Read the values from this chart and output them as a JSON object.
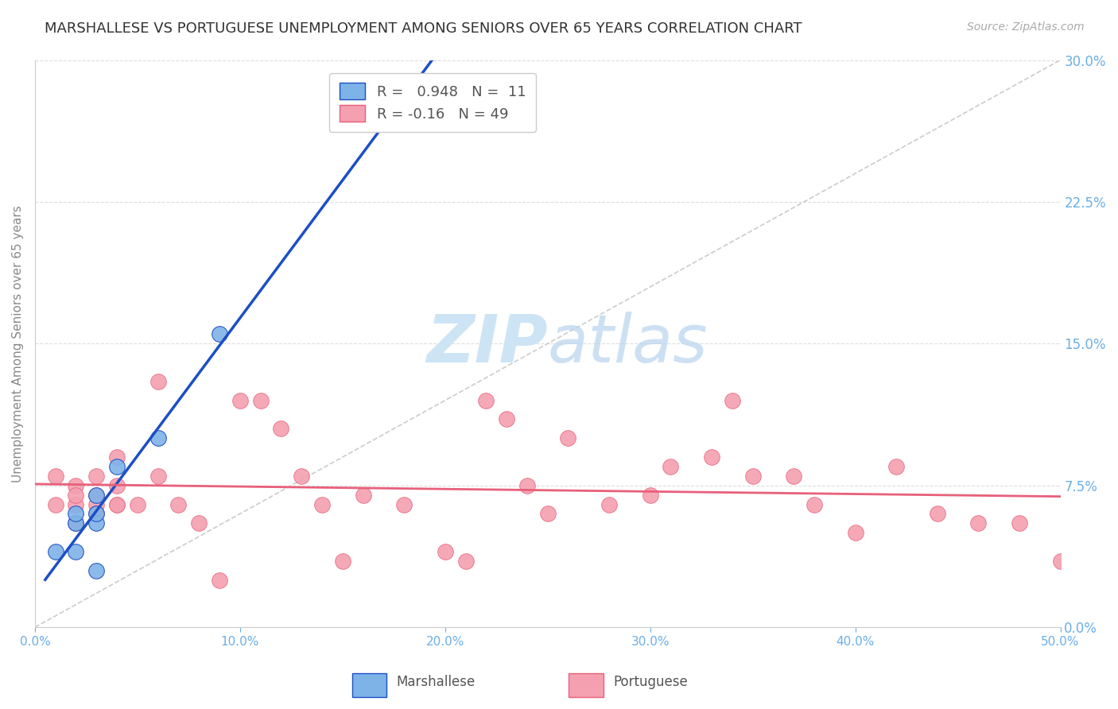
{
  "title": "MARSHALLESE VS PORTUGUESE UNEMPLOYMENT AMONG SENIORS OVER 65 YEARS CORRELATION CHART",
  "source": "Source: ZipAtlas.com",
  "ylabel": "Unemployment Among Seniors over 65 years",
  "xlim": [
    0.0,
    0.5
  ],
  "ylim": [
    0.0,
    0.3
  ],
  "xticks": [
    0.0,
    0.1,
    0.2,
    0.3,
    0.4,
    0.5
  ],
  "yticks_right": [
    0.0,
    0.075,
    0.15,
    0.225,
    0.3
  ],
  "marshallese_R": 0.948,
  "marshallese_N": 11,
  "portuguese_R": -0.16,
  "portuguese_N": 49,
  "marshallese_color": "#7eb3e8",
  "portuguese_color": "#f4a0b0",
  "marshallese_line_color": "#1c4fc4",
  "portuguese_line_color": "#e8607a",
  "diagonal_color": "#cccccc",
  "bg_color": "#ffffff",
  "grid_color": "#dddddd",
  "axis_label_color": "#6baee8",
  "title_color": "#333333",
  "marshallese_x": [
    0.01,
    0.02,
    0.02,
    0.02,
    0.03,
    0.03,
    0.03,
    0.03,
    0.04,
    0.06,
    0.09
  ],
  "marshallese_y": [
    0.04,
    0.055,
    0.06,
    0.04,
    0.055,
    0.06,
    0.07,
    0.03,
    0.085,
    0.1,
    0.155
  ],
  "portuguese_x": [
    0.01,
    0.01,
    0.02,
    0.02,
    0.02,
    0.02,
    0.03,
    0.03,
    0.03,
    0.03,
    0.04,
    0.04,
    0.04,
    0.04,
    0.05,
    0.06,
    0.06,
    0.07,
    0.08,
    0.09,
    0.1,
    0.11,
    0.12,
    0.13,
    0.14,
    0.15,
    0.16,
    0.18,
    0.2,
    0.21,
    0.22,
    0.23,
    0.24,
    0.25,
    0.26,
    0.28,
    0.3,
    0.31,
    0.33,
    0.34,
    0.35,
    0.37,
    0.38,
    0.4,
    0.42,
    0.44,
    0.46,
    0.48,
    0.5
  ],
  "portuguese_y": [
    0.08,
    0.065,
    0.075,
    0.065,
    0.07,
    0.055,
    0.08,
    0.07,
    0.065,
    0.06,
    0.065,
    0.075,
    0.09,
    0.065,
    0.065,
    0.13,
    0.08,
    0.065,
    0.055,
    0.025,
    0.12,
    0.12,
    0.105,
    0.08,
    0.065,
    0.035,
    0.07,
    0.065,
    0.04,
    0.035,
    0.12,
    0.11,
    0.075,
    0.06,
    0.1,
    0.065,
    0.07,
    0.085,
    0.09,
    0.12,
    0.08,
    0.08,
    0.065,
    0.05,
    0.085,
    0.06,
    0.055,
    0.055,
    0.035
  ],
  "watermark_zip": "ZIP",
  "watermark_atlas": "atlas",
  "watermark_color": "#cde4f5"
}
